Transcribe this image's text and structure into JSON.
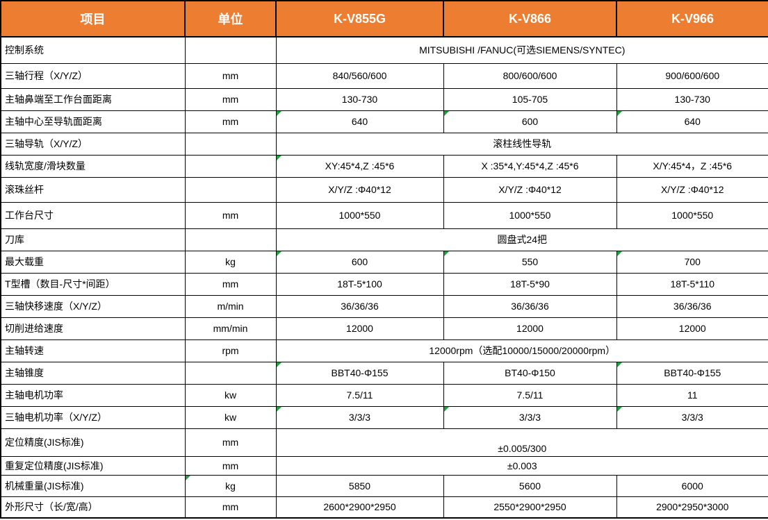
{
  "table": {
    "header": {
      "item_label": "项目",
      "unit_label": "单位",
      "models": [
        "K-V855G",
        "K-V866",
        "K-V966"
      ]
    },
    "rows": [
      {
        "label": "控制系统",
        "unit": "",
        "span": "MITSUBISHI /FANUC(可选SIEMENS/SYNTEC)"
      },
      {
        "label": "三轴行程（X/Y/Z）",
        "unit": "mm",
        "values": [
          "840/560/600",
          "800/600/600",
          "900/600/600"
        ]
      },
      {
        "label": "主轴鼻端至工作台面距离",
        "unit": "mm",
        "values": [
          "130-730",
          "105-705",
          "130-730"
        ]
      },
      {
        "label": "主轴中心至导轨面距离",
        "unit": "mm",
        "values": [
          "640",
          "600",
          "640"
        ],
        "flags": [
          0,
          1,
          2
        ]
      },
      {
        "label": "三轴导轨（X/Y/Z）",
        "unit": "",
        "span": "滚柱线性导轨"
      },
      {
        "label": "线轨宽度/滑块数量",
        "unit": "",
        "values": [
          "XY:45*4,Z :45*6",
          "X :35*4,Y:45*4,Z :45*6",
          "X/Y:45*4，Z :45*6"
        ],
        "flags": [
          0
        ]
      },
      {
        "label": "滚珠丝杆",
        "unit": "",
        "values": [
          "X/Y/Z :Φ40*12",
          "X/Y/Z :Φ40*12",
          "X/Y/Z :Φ40*12"
        ]
      },
      {
        "label": "工作台尺寸",
        "unit": "mm",
        "values": [
          "1000*550",
          "1000*550",
          "1000*550"
        ]
      },
      {
        "label": "刀库",
        "unit": "",
        "span": "圆盘式24把"
      },
      {
        "label": "最大载重",
        "unit": "kg",
        "values": [
          "600",
          "550",
          "700"
        ],
        "flags": [
          0,
          1,
          2
        ]
      },
      {
        "label": "T型槽（数目-尺寸*间距）",
        "unit": "mm",
        "values": [
          "18T-5*100",
          "18T-5*90",
          "18T-5*110"
        ]
      },
      {
        "label": "三轴快移速度（X/Y/Z）",
        "unit": "m/min",
        "values": [
          "36/36/36",
          "36/36/36",
          "36/36/36"
        ]
      },
      {
        "label": "切削进给速度",
        "unit": "mm/min",
        "values": [
          "12000",
          "12000",
          "12000"
        ]
      },
      {
        "label": "主轴转速",
        "unit": "rpm",
        "span": "12000rpm（选配10000/15000/20000rpm）"
      },
      {
        "label": "主轴锥度",
        "unit": "",
        "values": [
          "BBT40-Φ155",
          "BT40-Φ150",
          "BBT40-Φ155"
        ],
        "flags": [
          0,
          2
        ]
      },
      {
        "label": "主轴电机功率",
        "unit": "kw",
        "values": [
          "7.5/11",
          "7.5/11",
          "11"
        ]
      },
      {
        "label": "三轴电机功率（X/Y/Z）",
        "unit": "kw",
        "values": [
          "3/3/3",
          "3/3/3",
          "3/3/3"
        ],
        "flags": [
          0,
          1,
          2
        ]
      },
      {
        "label": "定位精度(JIS标准)",
        "unit": "mm",
        "span": "±0.005/300",
        "span_align": "bottom"
      },
      {
        "label": "重复定位精度(JIS标准)",
        "unit": "mm",
        "span": "±0.003"
      },
      {
        "label": "机械重量(JIS标准)",
        "unit": "kg",
        "values": [
          "5850",
          "5600",
          "6000"
        ],
        "unit_flag": true
      },
      {
        "label": "外形尺寸（长/宽/高）",
        "unit": "mm",
        "values": [
          "2600*2900*2950",
          "2550*2900*2950",
          "2900*2950*3000"
        ]
      }
    ],
    "colors": {
      "header_bg": "#ED7D31",
      "header_text": "#FFFFFF",
      "grid_border": "#000000",
      "error_indicator_green": "#1FA03C"
    },
    "icons": {
      "error_indicator": "excel-error-triangle-icon"
    }
  }
}
